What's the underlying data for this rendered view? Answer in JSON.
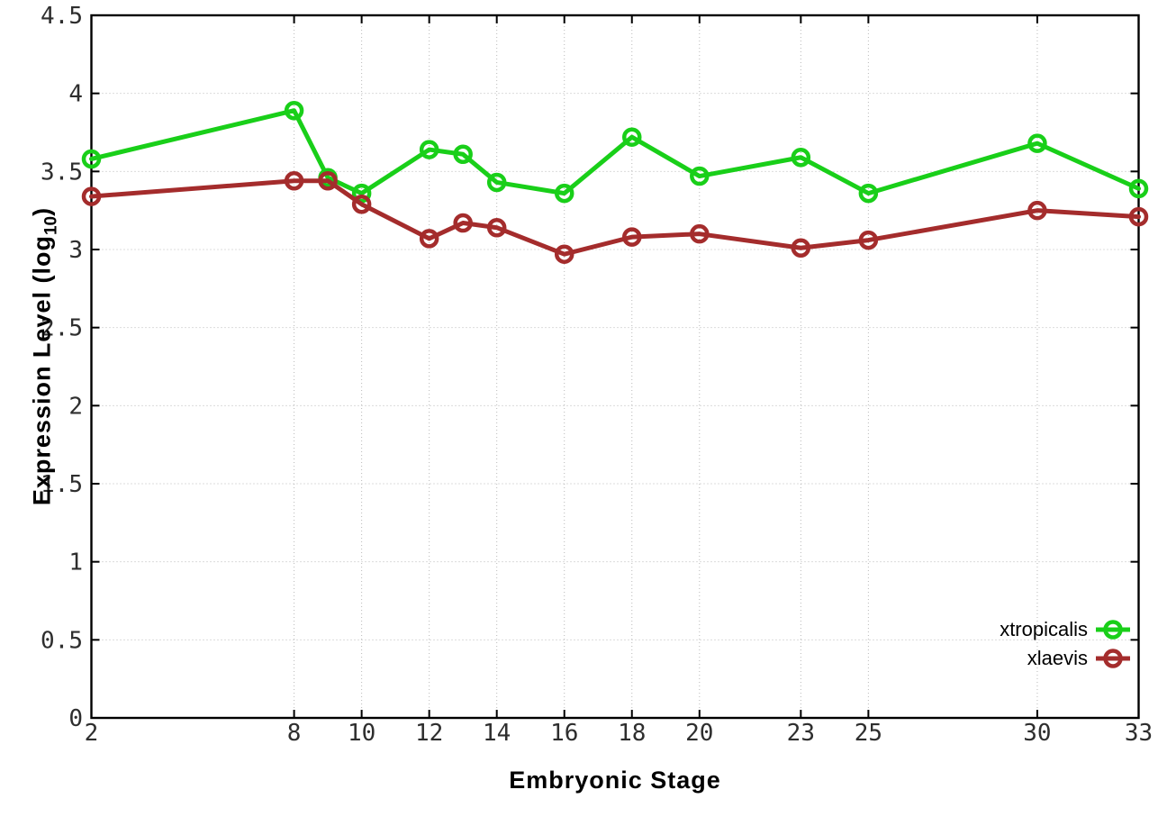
{
  "chart_data": {
    "type": "line",
    "title": "",
    "xlabel": "Embryonic Stage",
    "ylabel": "Expression Level (log10)",
    "ylabel_parts": {
      "main": "Expression Level (log",
      "sub": "10",
      "close": ")"
    },
    "xlim": [
      2,
      33
    ],
    "ylim": [
      0,
      4.5
    ],
    "grid": true,
    "legend_position": "inside-bottom-right",
    "x_ticks": [
      2,
      8,
      10,
      12,
      14,
      16,
      18,
      20,
      23,
      25,
      30,
      33
    ],
    "x_tick_labels": [
      "2",
      "8",
      "10",
      "12",
      "14",
      "16",
      "18",
      "20",
      "23",
      "25",
      "30",
      "33"
    ],
    "y_ticks": [
      0,
      0.5,
      1,
      1.5,
      2,
      2.5,
      3,
      3.5,
      4,
      4.5
    ],
    "y_tick_labels": [
      "0",
      "0.5",
      "1",
      "1.5",
      "2",
      "2.5",
      "3",
      "3.5",
      "4",
      "4.5"
    ],
    "stages": [
      2,
      8,
      9,
      10,
      12,
      13,
      14,
      16,
      18,
      20,
      23,
      25,
      30,
      33
    ],
    "series": [
      {
        "name": "xtropicalis",
        "color": "#19cf19",
        "values": [
          3.58,
          3.89,
          3.46,
          3.36,
          3.64,
          3.61,
          3.43,
          3.36,
          3.72,
          3.47,
          3.59,
          3.36,
          3.68,
          3.39
        ]
      },
      {
        "name": "xlaevis",
        "color": "#a42c2c",
        "values": [
          3.34,
          3.44,
          3.44,
          3.29,
          3.07,
          3.17,
          3.14,
          2.97,
          3.08,
          3.1,
          3.01,
          3.06,
          3.25,
          3.21
        ]
      }
    ]
  }
}
